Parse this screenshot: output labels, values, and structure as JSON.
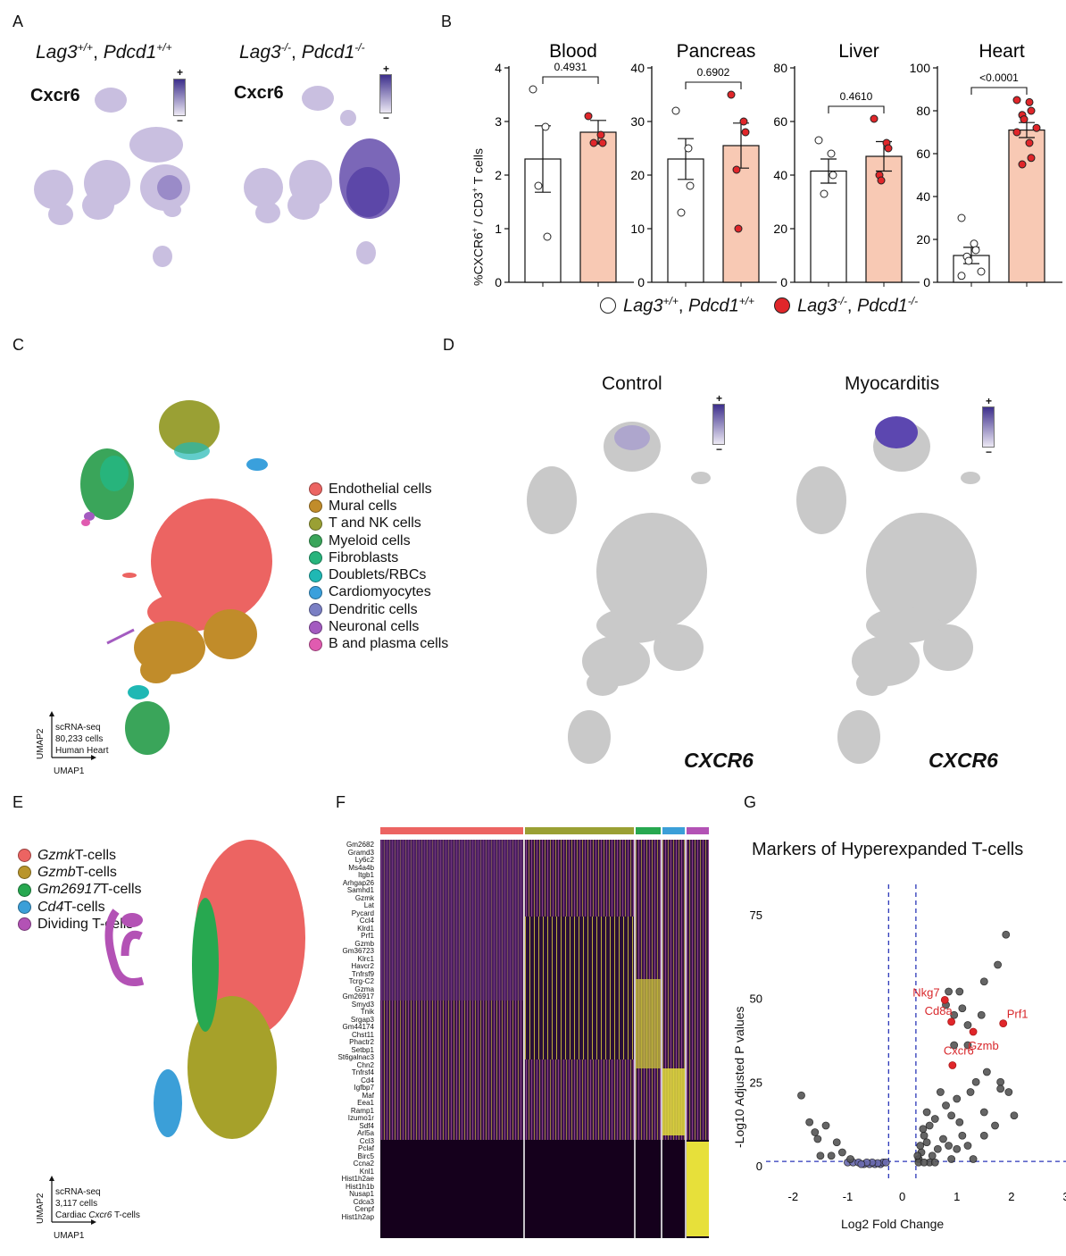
{
  "panelA": {
    "label": "A",
    "wt_title_gene1": "Lag3",
    "wt_title_sup1": "+/+",
    "wt_title_gene2": "Pdcd1",
    "wt_title_sup2": "+/+",
    "ko_title_gene1": "Lag3",
    "ko_title_sup1": "-/-",
    "ko_title_gene2": "Pdcd1",
    "ko_title_sup2": "-/-",
    "gene_label": "Cxcr6",
    "scale_plus": "+",
    "scale_minus": "−"
  },
  "panelB": {
    "label": "B",
    "ylabel_main": "%CXCR6",
    "ylabel_sup1": "+",
    "ylabel_mid": " / CD3",
    "ylabel_sup2": "+",
    "ylabel_end": " T cells",
    "legend_wt_gene1": "Lag3",
    "legend_wt_sup1": "+/+",
    "legend_wt_gene2": "Pdcd1",
    "legend_wt_sup2": "+/+",
    "legend_ko_gene1": "Lag3",
    "legend_ko_sup1": "-/-",
    "legend_ko_gene2": "Pdcd1",
    "legend_ko_sup2": "-/-",
    "comma": ", "
  },
  "panelC": {
    "label": "C",
    "legend": [
      {
        "name": "Endothelial cells",
        "color": "#ec6462"
      },
      {
        "name": "Mural cells",
        "color": "#c18c2a"
      },
      {
        "name": "T and NK cells",
        "color": "#9aa034"
      },
      {
        "name": "Myeloid cells",
        "color": "#3aa55a"
      },
      {
        "name": "Fibroblasts",
        "color": "#27b47c"
      },
      {
        "name": "Doublets/RBCs",
        "color": "#1fb8b4"
      },
      {
        "name": "Cardiomyocytes",
        "color": "#3aa0dc"
      },
      {
        "name": "Dendritic cells",
        "color": "#7a7fc4"
      },
      {
        "name": "Neuronal cells",
        "color": "#a35bc0"
      },
      {
        "name": "B and plasma cells",
        "color": "#e05bb0"
      }
    ],
    "axis_y": "UMAP2",
    "axis_x": "UMAP1",
    "note1": "scRNA-seq",
    "note2": "80,233 cells",
    "note3": "Human Heart"
  },
  "panelD": {
    "label": "D",
    "title_left": "Control",
    "title_right": "Myocarditis",
    "gene": "CXCR6",
    "scale_plus": "+",
    "scale_minus": "−"
  },
  "panelE": {
    "label": "E",
    "legend": [
      {
        "gene": "Gzmk",
        "suffix": " T-cells",
        "color": "#ec6462"
      },
      {
        "gene": "Gzmb",
        "suffix": " T-cells",
        "color": "#b9952b"
      },
      {
        "gene": "Gm26917",
        "suffix": " T-cells",
        "color": "#27a850"
      },
      {
        "gene": "Cd4",
        "suffix": " T-cells",
        "color": "#3b9fd8"
      },
      {
        "gene": "",
        "suffix": "Dividing T-cells",
        "color": "#b352b5"
      }
    ],
    "axis_y": "UMAP2",
    "axis_x": "UMAP1",
    "note1": "scRNA-seq",
    "note2": "3,117 cells",
    "note3_pre": "Cardiac ",
    "note3_gene": "Cxcr6",
    "note3_post": " T-cells"
  },
  "panelF": {
    "label": "F",
    "genes": [
      "Gm2682",
      "Gramd3",
      "Ly6c2",
      "Ms4a4b",
      "Itgb1",
      "Arhgap26",
      "Samhd1",
      "Gzmk",
      "Lat",
      "Pycard",
      "Ccl4",
      "Klrd1",
      "Prf1",
      "Gzmb",
      "Gm36723",
      "Klrc1",
      "Havcr2",
      "Tnfrsf9",
      "Tcrg-C2",
      "Gzma",
      "Gm26917",
      "Smyd3",
      "Tnik",
      "Srgap3",
      "Gm44174",
      "Chst11",
      "Phactr2",
      "Setbp1",
      "St6galnac3",
      "Chn2",
      "Tnfrsf4",
      "Cd4",
      "Igfbp7",
      "Maf",
      "Eea1",
      "Ramp1",
      "Izumo1r",
      "Sdf4",
      "Arl5a",
      "Ccl3",
      "Pclaf",
      "Birc5",
      "Ccna2",
      "Knl1",
      "Hist1h2ae",
      "Hist1h1b",
      "Nusap1",
      "Cdca3",
      "Cenpf",
      "Hist1h2ap"
    ]
  },
  "panelG": {
    "label": "G",
    "title": "Markers of Hyperexpanded T-cells",
    "ylabel": "-Log10 Adjusted P values",
    "xlabel": "Log2 Fold Change"
  },
  "chart_data": [
    {
      "type": "bar",
      "title": "Blood",
      "categories": [
        "Lag3+/+, Pdcd1+/+",
        "Lag3-/-, Pdcd1-/-"
      ],
      "values": [
        2.3,
        2.8
      ],
      "sem": [
        0.62,
        0.22
      ],
      "points": [
        [
          3.6,
          2.9,
          0.85,
          1.8
        ],
        [
          3.1,
          2.75,
          2.6,
          2.6
        ]
      ],
      "ylim": [
        0,
        4
      ],
      "yticks": [
        0,
        1,
        2,
        3,
        4
      ],
      "p_value": "0.4931",
      "ylabel": "%CXCR6+ / CD3+ T cells"
    },
    {
      "type": "bar",
      "title": "Pancreas",
      "categories": [
        "Lag3+/+, Pdcd1+/+",
        "Lag3-/-, Pdcd1-/-"
      ],
      "values": [
        23,
        25.5
      ],
      "sem": [
        3.8,
        4.2
      ],
      "points": [
        [
          32,
          25,
          18,
          13
        ],
        [
          35,
          30,
          28,
          21,
          10
        ]
      ],
      "ylim": [
        0,
        40
      ],
      "yticks": [
        0,
        10,
        20,
        30,
        40
      ],
      "p_value": "0.6902"
    },
    {
      "type": "bar",
      "title": "Liver",
      "categories": [
        "Lag3+/+, Pdcd1+/+",
        "Lag3-/-, Pdcd1-/-"
      ],
      "values": [
        41.5,
        47
      ],
      "sem": [
        4.5,
        5.5
      ],
      "points": [
        [
          53,
          48,
          40,
          33
        ],
        [
          61,
          52,
          50,
          40,
          38
        ]
      ],
      "ylim": [
        0,
        80
      ],
      "yticks": [
        0,
        20,
        40,
        60,
        80
      ],
      "p_value": "0.4610"
    },
    {
      "type": "bar",
      "title": "Heart",
      "categories": [
        "Lag3+/+, Pdcd1+/+",
        "Lag3-/-, Pdcd1-/-"
      ],
      "values": [
        12.5,
        71
      ],
      "sem": [
        3.8,
        3.5
      ],
      "points": [
        [
          30,
          18,
          15,
          12,
          10,
          5,
          3
        ],
        [
          85,
          84,
          80,
          78,
          76,
          72,
          70,
          65,
          58,
          55
        ]
      ],
      "ylim": [
        0,
        100
      ],
      "yticks": [
        0,
        20,
        40,
        60,
        80,
        100
      ],
      "p_value": "<0.0001"
    },
    {
      "type": "scatter",
      "title": "Markers of Hyperexpanded T-cells",
      "xlabel": "Log2 Fold Change",
      "ylabel": "-Log10 Adjusted P values",
      "xlim": [
        -2.3,
        3
      ],
      "ylim": [
        -4,
        84
      ],
      "xticks": [
        -2,
        -1,
        0,
        1,
        2,
        3
      ],
      "yticks": [
        0,
        25,
        50,
        75
      ],
      "thresholds": {
        "x": [
          -0.25,
          0.25
        ],
        "y": 1.3
      },
      "labeled_points": [
        {
          "gene": "Nkg7",
          "x": 0.78,
          "y": 49.5
        },
        {
          "gene": "Cd8a",
          "x": 0.9,
          "y": 43
        },
        {
          "gene": "Gzmb",
          "x": 1.3,
          "y": 40
        },
        {
          "gene": "Prf1",
          "x": 1.85,
          "y": 42.5
        },
        {
          "gene": "Cxcr6",
          "x": 0.92,
          "y": 30
        }
      ],
      "points": [
        [
          1.9,
          69
        ],
        [
          1.75,
          60
        ],
        [
          1.5,
          55
        ],
        [
          0.85,
          52
        ],
        [
          1.05,
          52
        ],
        [
          0.8,
          48
        ],
        [
          0.95,
          45
        ],
        [
          1.1,
          47
        ],
        [
          1.2,
          42
        ],
        [
          1.45,
          45
        ],
        [
          0.95,
          36
        ],
        [
          1.2,
          36
        ],
        [
          1.55,
          28
        ],
        [
          1.35,
          25
        ],
        [
          1.25,
          22
        ],
        [
          1.8,
          25
        ],
        [
          1.8,
          23
        ],
        [
          0.7,
          22
        ],
        [
          1.0,
          20
        ],
        [
          0.8,
          18
        ],
        [
          0.9,
          15
        ],
        [
          1.05,
          13
        ],
        [
          1.5,
          16
        ],
        [
          1.7,
          12
        ],
        [
          1.95,
          22
        ],
        [
          2.05,
          15
        ],
        [
          0.6,
          14
        ],
        [
          0.5,
          12
        ],
        [
          0.45,
          7
        ],
        [
          0.4,
          9
        ],
        [
          0.55,
          3
        ],
        [
          0.35,
          4
        ],
        [
          0.3,
          2
        ],
        [
          0.65,
          5
        ],
        [
          0.75,
          8
        ],
        [
          0.85,
          6
        ],
        [
          1.0,
          5
        ],
        [
          1.1,
          9
        ],
        [
          1.2,
          6
        ],
        [
          0.5,
          1
        ],
        [
          0.6,
          1
        ],
        [
          0.3,
          1
        ],
        [
          0.4,
          1
        ],
        [
          1.5,
          9
        ],
        [
          1.3,
          2
        ],
        [
          0.9,
          2
        ],
        [
          0.45,
          16
        ],
        [
          0.38,
          11
        ],
        [
          0.33,
          6
        ],
        [
          0.28,
          3
        ],
        [
          -1.85,
          21
        ],
        [
          -1.7,
          13
        ],
        [
          -1.6,
          10
        ],
        [
          -1.55,
          8
        ],
        [
          -1.4,
          12
        ],
        [
          -1.2,
          7
        ],
        [
          -1.3,
          3
        ],
        [
          -1.0,
          1
        ],
        [
          -0.9,
          1
        ],
        [
          -0.8,
          1
        ],
        [
          -0.7,
          0.5
        ],
        [
          -0.6,
          0.5
        ],
        [
          -0.5,
          0.5
        ],
        [
          -0.4,
          0.5
        ],
        [
          -0.35,
          1
        ],
        [
          -0.3,
          1
        ],
        [
          -0.45,
          0.8
        ],
        [
          -0.55,
          1
        ],
        [
          -0.65,
          1
        ],
        [
          -0.75,
          0.5
        ],
        [
          -1.5,
          3
        ],
        [
          -1.1,
          4
        ],
        [
          -0.95,
          2
        ]
      ]
    }
  ]
}
